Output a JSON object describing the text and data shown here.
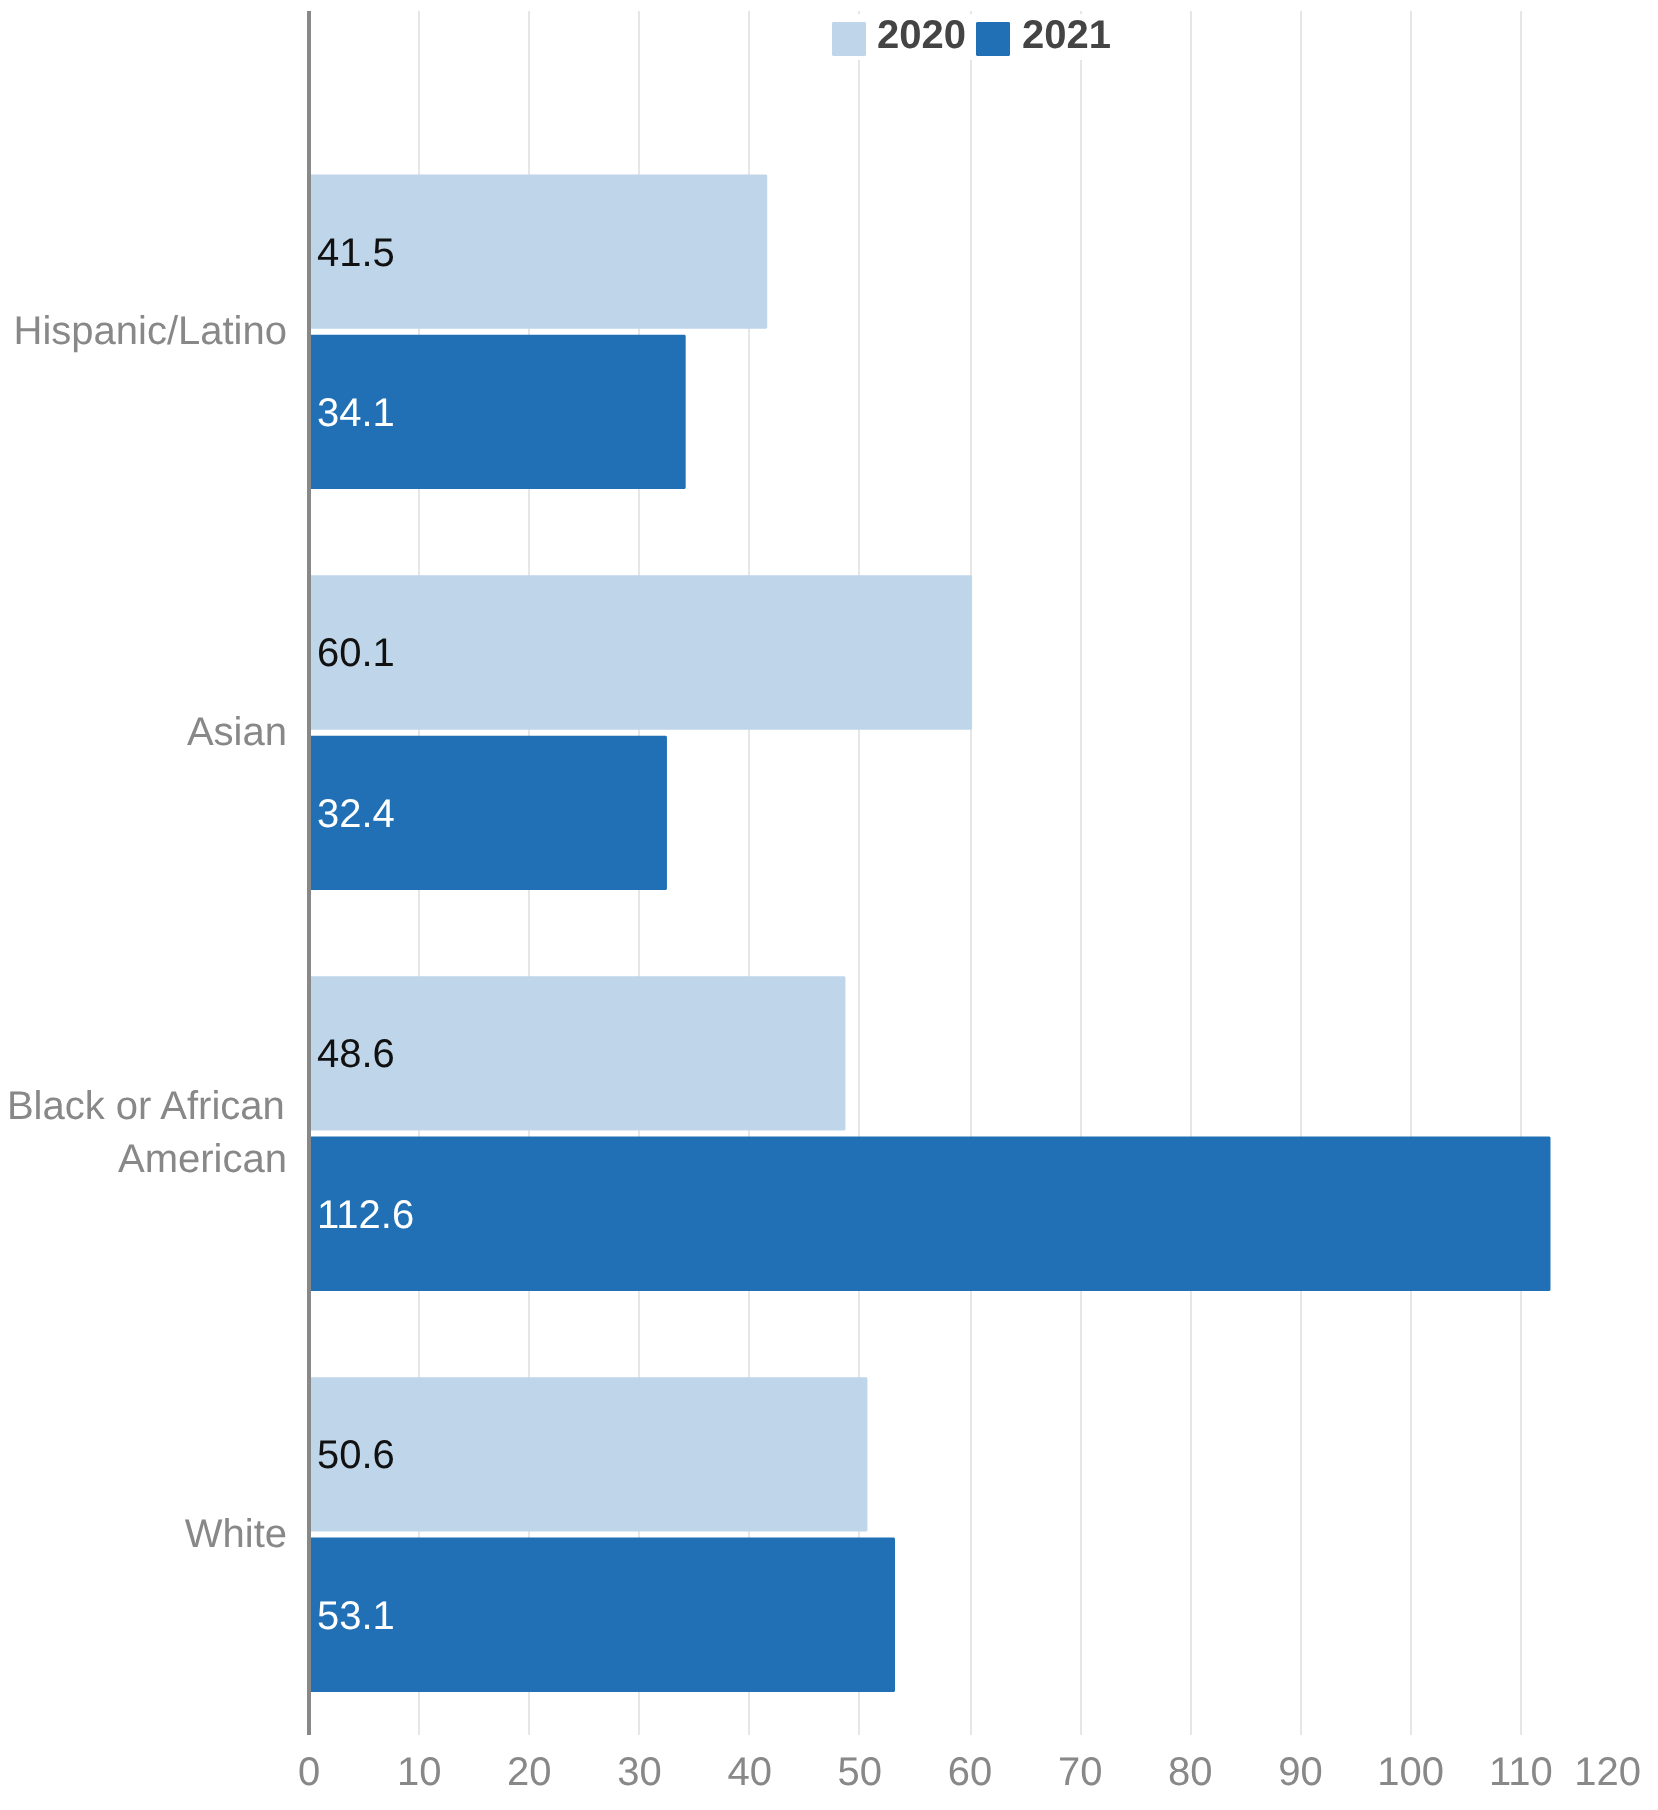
{
  "chart_data": {
    "type": "bar",
    "orientation": "horizontal",
    "categories": [
      "Hispanic/Latino",
      "Asian",
      "Black or African American",
      "White"
    ],
    "series": [
      {
        "name": "2020",
        "color": "#bfd6ea",
        "values": [
          41.5,
          60.1,
          48.6,
          50.6
        ]
      },
      {
        "name": "2021",
        "color": "#2170b5",
        "values": [
          34.1,
          32.4,
          112.6,
          53.1
        ]
      }
    ],
    "xlim": [
      0,
      120
    ],
    "xticks": [
      0,
      10,
      20,
      30,
      40,
      50,
      60,
      70,
      80,
      90,
      100,
      110,
      120
    ],
    "grid": "x",
    "legend": "top",
    "data_labels": true
  }
}
